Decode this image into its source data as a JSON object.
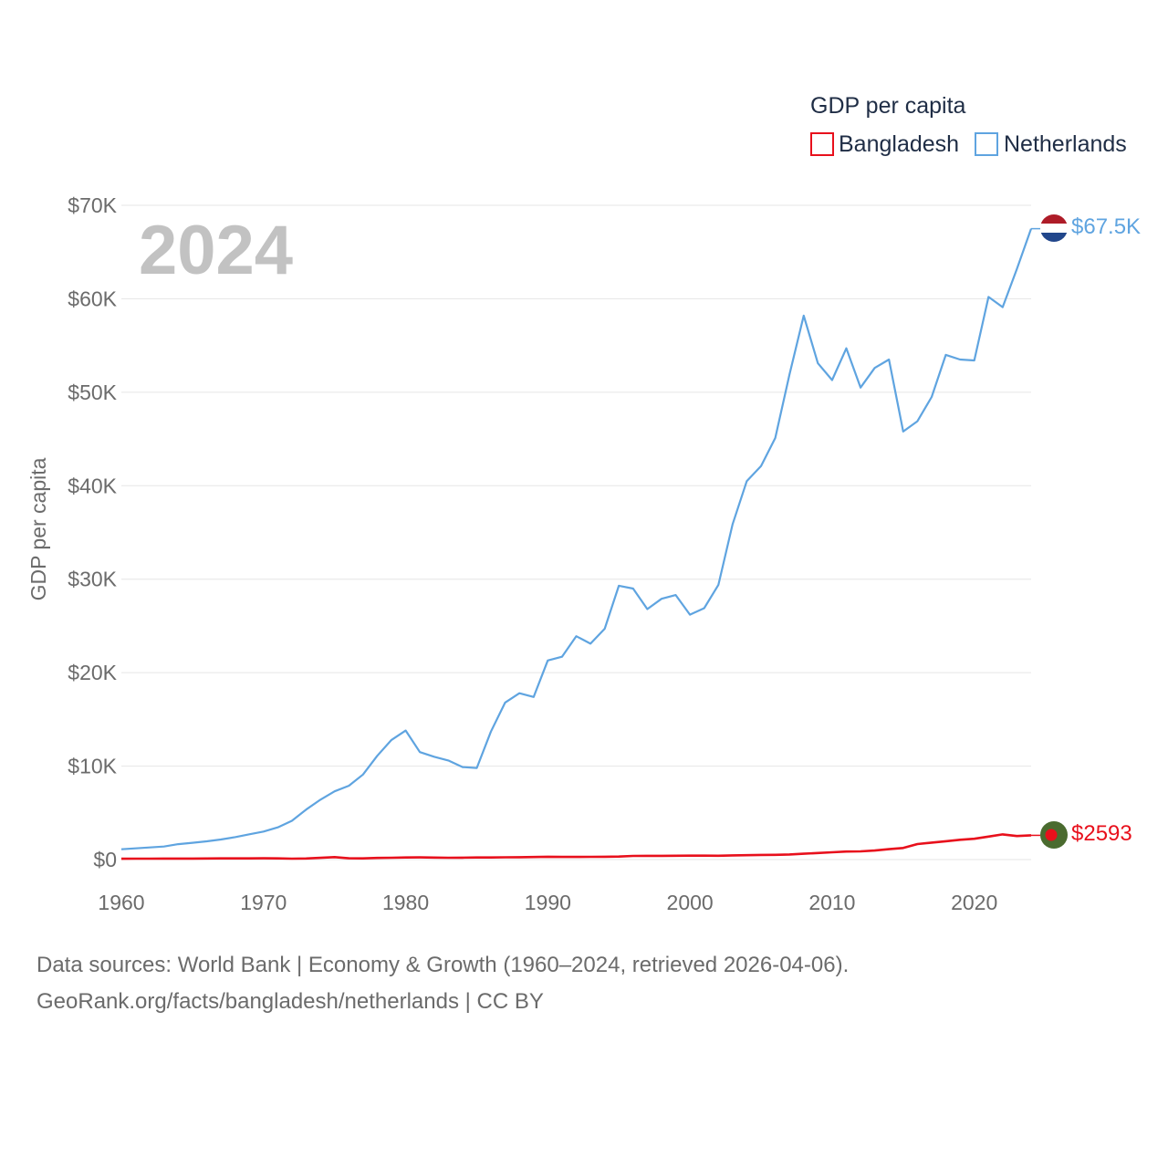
{
  "legend": {
    "title": "GDP per capita",
    "items": [
      {
        "name": "Bangladesh",
        "color": "#e8101c"
      },
      {
        "name": "Netherlands",
        "color": "#5fa4e0"
      }
    ]
  },
  "year_watermark": "2024",
  "footer": {
    "line1": "Data sources: World Bank | Economy & Growth (1960–2024, retrieved 2026-04-06).",
    "line2": "GeoRank.org/facts/bangladesh/netherlands | CC BY"
  },
  "chart_data": {
    "type": "line",
    "title": "GDP per capita",
    "xlabel": "",
    "ylabel": "GDP per capita",
    "ylim": [
      0,
      70000
    ],
    "xlim": [
      1960,
      2024
    ],
    "x_ticks": [
      "1960",
      "1970",
      "1980",
      "1990",
      "2000",
      "2010",
      "2020"
    ],
    "y_ticks": [
      "$0",
      "$10K",
      "$20K",
      "$30K",
      "$40K",
      "$50K",
      "$60K",
      "$70K"
    ],
    "grid": true,
    "legend_position": "top-right",
    "x": [
      1960,
      1961,
      1962,
      1963,
      1964,
      1965,
      1966,
      1967,
      1968,
      1969,
      1970,
      1971,
      1972,
      1973,
      1974,
      1975,
      1976,
      1977,
      1978,
      1979,
      1980,
      1981,
      1982,
      1983,
      1984,
      1985,
      1986,
      1987,
      1988,
      1989,
      1990,
      1991,
      1992,
      1993,
      1994,
      1995,
      1996,
      1997,
      1998,
      1999,
      2000,
      2001,
      2002,
      2003,
      2004,
      2005,
      2006,
      2007,
      2008,
      2009,
      2010,
      2011,
      2012,
      2013,
      2014,
      2015,
      2016,
      2017,
      2018,
      2019,
      2020,
      2021,
      2022,
      2023,
      2024
    ],
    "series": [
      {
        "name": "Netherlands",
        "color": "#5fa4e0",
        "end_label": "$67.5K",
        "values": [
          1100,
          1200,
          1300,
          1400,
          1650,
          1800,
          1950,
          2150,
          2400,
          2700,
          3000,
          3450,
          4150,
          5350,
          6400,
          7300,
          7900,
          9100,
          11100,
          12800,
          13800,
          11500,
          11000,
          10600,
          9900,
          9800,
          13700,
          16800,
          17800,
          17400,
          21300,
          21700,
          23900,
          23100,
          24700,
          29300,
          29000,
          26800,
          27900,
          28300,
          26200,
          26900,
          29400,
          35900,
          40500,
          42100,
          45100,
          51900,
          58200,
          53100,
          51300,
          54700,
          50500,
          52600,
          53500,
          45800,
          46900,
          49500,
          54000,
          53500,
          53400,
          60200,
          59100,
          63200,
          67500
        ]
      },
      {
        "name": "Bangladesh",
        "color": "#e8101c",
        "end_label": "$2593",
        "values": [
          89,
          95,
          100,
          103,
          108,
          110,
          118,
          125,
          129,
          131,
          137,
          130,
          95,
          118,
          185,
          260,
          140,
          130,
          175,
          200,
          225,
          230,
          215,
          195,
          205,
          225,
          220,
          240,
          255,
          270,
          300,
          280,
          285,
          290,
          300,
          325,
          390,
          400,
          400,
          410,
          420,
          415,
          410,
          450,
          470,
          500,
          510,
          550,
          625,
          700,
          780,
          860,
          880,
          970,
          1110,
          1240,
          1660,
          1820,
          1960,
          2120,
          2230,
          2460,
          2690,
          2520,
          2593
        ]
      }
    ]
  }
}
